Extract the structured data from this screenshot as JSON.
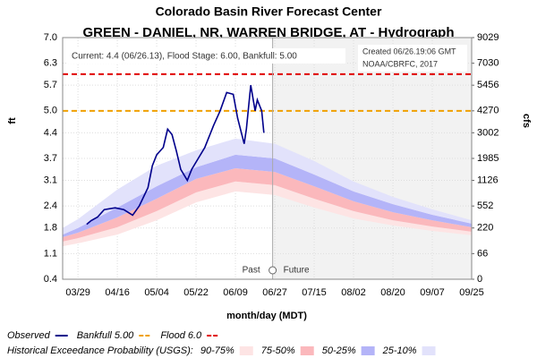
{
  "chart_data": {
    "type": "line",
    "title": "Colorado Basin River Forecast Center",
    "subtitle": "GREEN - DANIEL, NR, WARREN BRIDGE, AT - Hydrograph",
    "ylabel": "ft",
    "y2label": "cfs",
    "xlabel": "month/day (MDT)",
    "annotation": "Current: 4.4 (06/26.13), Flood Stage: 6.00, Bankfull: 5.00",
    "created": "Created 06/26.19:06 GMT",
    "credit": "NOAA/CBRFC, 2017",
    "past_label": "Past",
    "future_label": "Future",
    "forecast_start": "06/26",
    "xlim": [
      "03/22",
      "09/25"
    ],
    "xticks": [
      "03/29",
      "04/16",
      "05/04",
      "05/22",
      "06/09",
      "06/27",
      "07/15",
      "08/02",
      "08/20",
      "09/07",
      "09/25"
    ],
    "ylim": [
      0.4,
      7.0
    ],
    "yticks": [
      0.4,
      1.1,
      1.8,
      2.4,
      3.1,
      3.7,
      4.4,
      {
        "value": 5,
        "label": "5.0"
      },
      5.7,
      6.3,
      {
        "value": 7,
        "label": "7.0"
      }
    ],
    "y2ticks": [
      0,
      66,
      220,
      552,
      1126,
      1985,
      3002,
      4270,
      5456,
      7030,
      9029
    ],
    "grid": true,
    "series": [
      {
        "name": "Observed",
        "color": "#00008b",
        "x": [
          "04/02",
          "04/04",
          "04/07",
          "04/10",
          "04/15",
          "04/19",
          "04/23",
          "04/26",
          "04/30",
          "05/02",
          "05/04",
          "05/07",
          "05/09",
          "05/11",
          "05/13",
          "05/15",
          "05/18",
          "05/20",
          "05/23",
          "05/26",
          "05/30",
          "06/02",
          "06/05",
          "06/08",
          "06/10",
          "06/13",
          "06/14",
          "06/16",
          "06/18",
          "06/19",
          "06/21",
          "06/22"
        ],
        "values": [
          1.9,
          2.0,
          2.1,
          2.3,
          2.35,
          2.3,
          2.15,
          2.4,
          2.9,
          3.5,
          3.8,
          4.0,
          4.5,
          4.35,
          3.9,
          3.4,
          3.1,
          3.4,
          3.7,
          4.0,
          4.6,
          5.0,
          5.5,
          5.45,
          4.8,
          4.1,
          4.5,
          5.7,
          5.0,
          5.3,
          5.0,
          4.4
        ]
      }
    ],
    "thresholds": [
      {
        "name": "Bankfull 5.00",
        "value": 5,
        "color": "#f0a000"
      },
      {
        "name": "Flood 6.0",
        "value": 6,
        "color": "#e00000"
      }
    ],
    "exceedance_title": "Historical Exceedance Probability (USGS):",
    "exceedance_x": [
      "03/22",
      "03/29",
      "04/16",
      "05/04",
      "05/22",
      "06/09",
      "06/27",
      "07/15",
      "08/02",
      "08/20",
      "09/07",
      "09/25"
    ],
    "bands": [
      {
        "name": "90-75%",
        "color": "#fde4e4",
        "low": [
          1.3,
          1.38,
          1.62,
          2.01,
          2.5,
          2.8,
          2.7,
          2.36,
          2.06,
          1.87,
          1.72,
          1.6
        ],
        "high": [
          1.43,
          1.52,
          1.82,
          2.26,
          2.77,
          3.07,
          2.97,
          2.6,
          2.26,
          2.01,
          1.84,
          1.7
        ]
      },
      {
        "name": "75-50%",
        "color": "#fbb8bc",
        "low": [
          1.43,
          1.52,
          1.82,
          2.26,
          2.77,
          3.07,
          2.97,
          2.6,
          2.26,
          2.01,
          1.84,
          1.7
        ],
        "high": [
          1.55,
          1.67,
          2.09,
          2.6,
          3.14,
          3.43,
          3.33,
          2.94,
          2.53,
          2.23,
          2.01,
          1.82
        ]
      },
      {
        "name": "50-25%",
        "color": "#b4b4f8",
        "low": [
          1.55,
          1.67,
          2.09,
          2.6,
          3.14,
          3.43,
          3.33,
          2.94,
          2.53,
          2.23,
          2.01,
          1.82
        ],
        "high": [
          1.62,
          1.8,
          2.36,
          2.94,
          3.46,
          3.8,
          3.7,
          3.26,
          2.8,
          2.45,
          2.16,
          1.92
        ]
      },
      {
        "name": "25-10%",
        "color": "#e2e2fb",
        "low": [
          1.62,
          1.8,
          2.36,
          2.94,
          3.46,
          3.8,
          3.7,
          3.26,
          2.8,
          2.45,
          2.16,
          1.92
        ],
        "high": [
          1.8,
          2.04,
          2.85,
          3.5,
          3.92,
          4.24,
          4.1,
          3.63,
          3.07,
          2.65,
          2.31,
          2.01
        ]
      }
    ]
  }
}
